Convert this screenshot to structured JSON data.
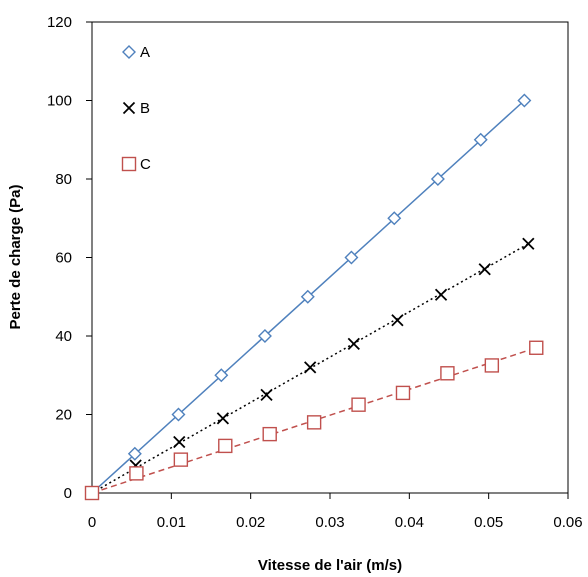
{
  "chart_data": {
    "type": "scatter",
    "title": "",
    "xlabel": "Vitesse de l'air (m/s)",
    "ylabel": "Perte de charge (Pa)",
    "xlim": [
      0,
      0.06
    ],
    "ylim": [
      0,
      120
    ],
    "xticks": [
      0,
      0.01,
      0.02,
      0.03,
      0.04,
      0.05,
      0.06
    ],
    "xtick_labels": [
      "0",
      "0.01",
      "0.02",
      "0.03",
      "0.04",
      "0.05",
      "0.06"
    ],
    "yticks": [
      0,
      20,
      40,
      60,
      80,
      100,
      120
    ],
    "ytick_labels": [
      "0",
      "20",
      "40",
      "60",
      "80",
      "100",
      "120"
    ],
    "grid": false,
    "legend_position": "top-left",
    "series": [
      {
        "name": "A",
        "marker": "diamond",
        "color": "#4f81bd",
        "line_style": "solid",
        "x": [
          0,
          0.0054,
          0.0109,
          0.0163,
          0.0218,
          0.0272,
          0.0327,
          0.0381,
          0.0436,
          0.049,
          0.0545
        ],
        "y": [
          0,
          10,
          20,
          30,
          40,
          50,
          60,
          70,
          80,
          90,
          100
        ],
        "fit": [
          [
            0,
            0
          ],
          [
            0.0545,
            100
          ]
        ]
      },
      {
        "name": "B",
        "marker": "x",
        "color": "#000000",
        "line_style": "dotted",
        "x": [
          0,
          0.0055,
          0.011,
          0.0165,
          0.022,
          0.0275,
          0.033,
          0.0385,
          0.044,
          0.0495,
          0.055
        ],
        "y": [
          0,
          7,
          13,
          19,
          25,
          32,
          38,
          44,
          50.5,
          57,
          63.5
        ],
        "fit": [
          [
            0,
            0
          ],
          [
            0.055,
            63.5
          ]
        ]
      },
      {
        "name": "C",
        "marker": "square",
        "color": "#c0504d",
        "line_style": "dashed",
        "x": [
          0,
          0.0056,
          0.0112,
          0.0168,
          0.0224,
          0.028,
          0.0336,
          0.0392,
          0.0448,
          0.0504,
          0.056
        ],
        "y": [
          0,
          5,
          8.5,
          12,
          15,
          18,
          22.5,
          25.5,
          30.5,
          32.5,
          37
        ],
        "fit": [
          [
            0,
            0
          ],
          [
            0.056,
            37
          ]
        ]
      }
    ]
  }
}
